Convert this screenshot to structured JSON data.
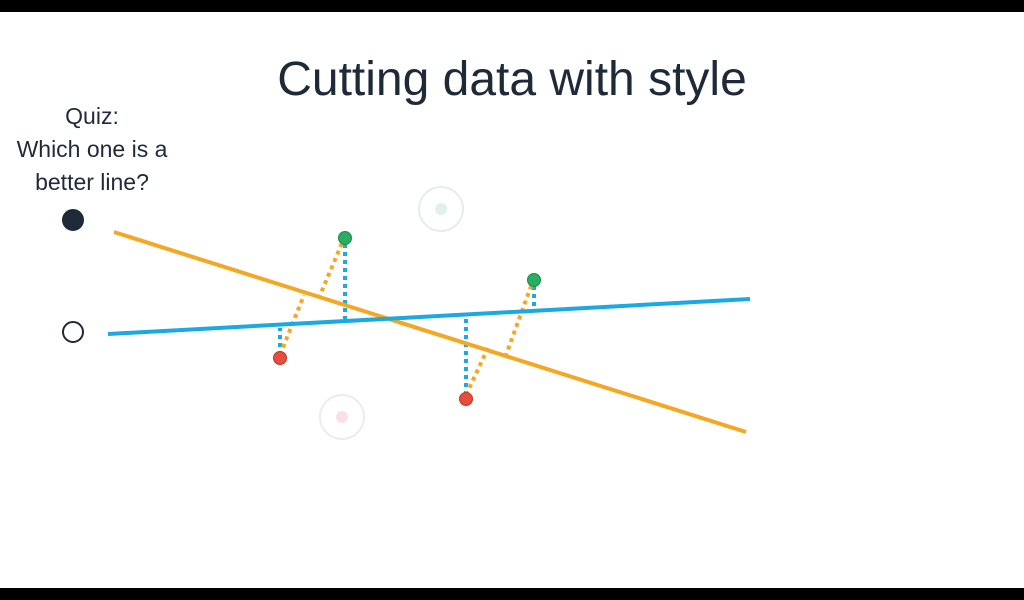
{
  "slide": {
    "title": "Cutting data with style",
    "quiz": {
      "line1": "Quiz:",
      "line2": "Which one is a",
      "line3": "better line?"
    },
    "options": [
      {
        "selected": true
      },
      {
        "selected": false
      }
    ]
  },
  "colors": {
    "orange_line": "#f5a623",
    "blue_line": "#1aa9e0",
    "green_point": "#27ae60",
    "red_point": "#e74c3c",
    "text": "#1e2a38"
  }
}
